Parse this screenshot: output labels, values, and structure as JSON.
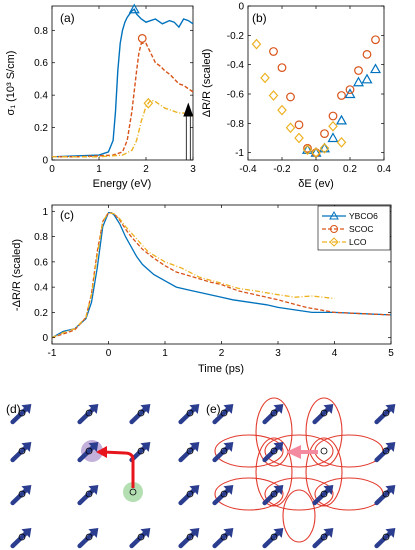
{
  "colors": {
    "ybco6": "#0072BD",
    "scoc": "#D95319",
    "lco": "#EDB120",
    "spin": "#2b3d8f",
    "hop_arrow": "#e8141c",
    "loop": "#e23b2e",
    "pink_arrow": "#f48aa0",
    "hole_green": "#9ad49a",
    "hole_purple": "#7a4fb0"
  },
  "chart_data": [
    {
      "panel": "(a)",
      "type": "line",
      "xlabel": "Energy (eV)",
      "ylabel": "σ₁ (10³ S/cm)",
      "xlim": [
        0,
        3
      ],
      "ylim": [
        0,
        0.95
      ],
      "xticks": [
        "0",
        "1",
        "2",
        "3"
      ],
      "yticks": [
        "0",
        "0.2",
        "0.4",
        "0.6",
        "0.8"
      ],
      "series": [
        {
          "name": "YBCO6",
          "x": [
            0,
            0.5,
            1.0,
            1.2,
            1.3,
            1.35,
            1.4,
            1.45,
            1.5,
            1.55,
            1.6,
            1.65,
            1.7,
            1.75,
            1.8,
            1.9,
            2.0,
            2.1,
            2.2,
            2.35,
            2.5,
            2.6,
            2.7,
            2.8,
            2.9,
            3.0
          ],
          "y": [
            0.02,
            0.025,
            0.03,
            0.05,
            0.12,
            0.3,
            0.55,
            0.72,
            0.8,
            0.85,
            0.88,
            0.9,
            0.92,
            0.93,
            0.9,
            0.87,
            0.85,
            0.86,
            0.87,
            0.84,
            0.86,
            0.85,
            0.82,
            0.87,
            0.86,
            0.84
          ]
        },
        {
          "name": "SCOC",
          "x": [
            0,
            0.5,
            1.0,
            1.3,
            1.5,
            1.6,
            1.7,
            1.8,
            1.85,
            1.9,
            2.0,
            2.1,
            2.2,
            2.3,
            2.4,
            2.5,
            2.6,
            2.7,
            2.8,
            2.9,
            3.0
          ],
          "y": [
            0.02,
            0.02,
            0.025,
            0.03,
            0.05,
            0.12,
            0.3,
            0.55,
            0.66,
            0.72,
            0.72,
            0.66,
            0.6,
            0.58,
            0.55,
            0.53,
            0.5,
            0.47,
            0.46,
            0.44,
            0.42
          ]
        },
        {
          "name": "LCO",
          "x": [
            0,
            0.5,
            1.0,
            1.5,
            1.7,
            1.8,
            1.9,
            2.0,
            2.1,
            2.2,
            2.3,
            2.4,
            2.5,
            2.6,
            2.7,
            2.8,
            2.9,
            3.0
          ],
          "y": [
            0.02,
            0.02,
            0.02,
            0.03,
            0.06,
            0.12,
            0.24,
            0.33,
            0.37,
            0.36,
            0.34,
            0.32,
            0.31,
            0.3,
            0.29,
            0.29,
            0.28,
            0.27
          ]
        }
      ],
      "markers": [
        {
          "series": "YBCO6",
          "shape": "triangle",
          "x": 1.75,
          "y": 0.93
        },
        {
          "series": "SCOC",
          "shape": "circle",
          "x": 1.92,
          "y": 0.75
        },
        {
          "series": "LCO",
          "shape": "diamond",
          "x": 2.05,
          "y": 0.35
        }
      ],
      "pump_arrow_energy": 2.9,
      "pump_arrow_range": [
        0,
        0.33
      ]
    },
    {
      "panel": "(b)",
      "type": "scatter",
      "xlabel": "δE (ev)",
      "ylabel": "ΔR/R (scaled)",
      "xlim": [
        -0.4,
        0.4
      ],
      "ylim": [
        -1.05,
        0
      ],
      "xticks": [
        "-0.4",
        "-0.2",
        "0",
        "0.2",
        "0.4"
      ],
      "yticks": [
        "-1",
        "-0.8",
        "-0.6",
        "-0.4",
        "-0.2",
        "0"
      ],
      "series": [
        {
          "name": "YBCO6",
          "marker": "triangle",
          "x": [
            -0.05,
            0.0,
            0.05,
            0.1,
            0.15,
            0.2,
            0.25,
            0.3,
            0.35
          ],
          "y": [
            -0.98,
            -1.0,
            -0.97,
            -0.9,
            -0.78,
            -0.6,
            -0.52,
            -0.5,
            -0.43
          ]
        },
        {
          "name": "SCOC",
          "marker": "circle",
          "x": [
            -0.25,
            -0.2,
            -0.15,
            -0.1,
            -0.05,
            0.0,
            0.05,
            0.1,
            0.15,
            0.2,
            0.25,
            0.3,
            0.35
          ],
          "y": [
            -0.31,
            -0.42,
            -0.62,
            -0.81,
            -0.97,
            -1.0,
            -0.87,
            -0.75,
            -0.61,
            -0.57,
            -0.44,
            -0.33,
            -0.23
          ]
        },
        {
          "name": "LCO",
          "marker": "diamond",
          "x": [
            -0.35,
            -0.3,
            -0.25,
            -0.2,
            -0.15,
            -0.1,
            -0.05,
            0.0,
            0.05,
            0.1,
            0.15
          ],
          "y": [
            -0.26,
            -0.49,
            -0.61,
            -0.71,
            -0.83,
            -0.9,
            -0.98,
            -1.0,
            -0.97,
            -0.82,
            -0.93
          ]
        }
      ]
    },
    {
      "panel": "(c)",
      "type": "line",
      "xlabel": "Time (ps)",
      "ylabel": "-ΔR/R (scaled)",
      "xlim": [
        -1,
        5
      ],
      "ylim": [
        -0.05,
        1.05
      ],
      "xticks": [
        "-1",
        "0",
        "1",
        "2",
        "3",
        "4",
        "5"
      ],
      "yticks": [
        "0",
        "0.2",
        "0.4",
        "0.6",
        "0.8",
        "1"
      ],
      "legend": {
        "placement": "top-right",
        "entries": [
          "YBCO6",
          "SCOC",
          "LCO"
        ]
      },
      "series": [
        {
          "name": "YBCO6",
          "x": [
            -1.0,
            -0.8,
            -0.6,
            -0.4,
            -0.3,
            -0.2,
            -0.1,
            0.0,
            0.05,
            0.1,
            0.2,
            0.3,
            0.4,
            0.5,
            0.6,
            0.8,
            1.0,
            1.2,
            1.4,
            1.6,
            1.8,
            2.0,
            2.2,
            2.5,
            2.8,
            3.0,
            3.3,
            3.6,
            4.0,
            4.5,
            5.0
          ],
          "y": [
            0.0,
            0.05,
            0.07,
            0.15,
            0.28,
            0.55,
            0.88,
            0.99,
            0.99,
            0.97,
            0.9,
            0.8,
            0.72,
            0.64,
            0.58,
            0.5,
            0.45,
            0.4,
            0.38,
            0.36,
            0.34,
            0.32,
            0.3,
            0.28,
            0.26,
            0.24,
            0.22,
            0.2,
            0.2,
            0.19,
            0.18
          ]
        },
        {
          "name": "SCOC",
          "x": [
            -1.0,
            -0.8,
            -0.6,
            -0.4,
            -0.3,
            -0.2,
            -0.1,
            0.0,
            0.1,
            0.2,
            0.3,
            0.4,
            0.6,
            0.8,
            1.0,
            1.2,
            1.5,
            1.8,
            2.0,
            2.3,
            2.6,
            3.0,
            3.5,
            4.0,
            4.5,
            5.0
          ],
          "y": [
            0.0,
            0.03,
            0.06,
            0.16,
            0.35,
            0.68,
            0.92,
            0.99,
            0.98,
            0.93,
            0.86,
            0.8,
            0.7,
            0.63,
            0.57,
            0.52,
            0.48,
            0.44,
            0.42,
            0.37,
            0.34,
            0.3,
            0.24,
            0.2,
            0.19,
            0.18
          ]
        },
        {
          "name": "LCO",
          "x": [
            -1.0,
            -0.8,
            -0.6,
            -0.4,
            -0.3,
            -0.2,
            -0.1,
            0.0,
            0.1,
            0.2,
            0.3,
            0.5,
            0.7,
            1.0,
            1.3,
            1.6,
            2.0,
            2.3,
            2.6,
            3.0,
            3.3,
            3.6,
            4.0
          ],
          "y": [
            0.0,
            0.04,
            0.07,
            0.16,
            0.34,
            0.65,
            0.92,
            0.99,
            0.98,
            0.94,
            0.88,
            0.78,
            0.68,
            0.6,
            0.55,
            0.48,
            0.43,
            0.39,
            0.37,
            0.34,
            0.32,
            0.33,
            0.31
          ]
        }
      ]
    }
  ],
  "panels": {
    "a": {
      "label": "(a)"
    },
    "b": {
      "label": "(b)"
    },
    "c": {
      "label": "(c)"
    },
    "d": {
      "label": "(d)"
    },
    "e": {
      "label": "(e)"
    }
  }
}
